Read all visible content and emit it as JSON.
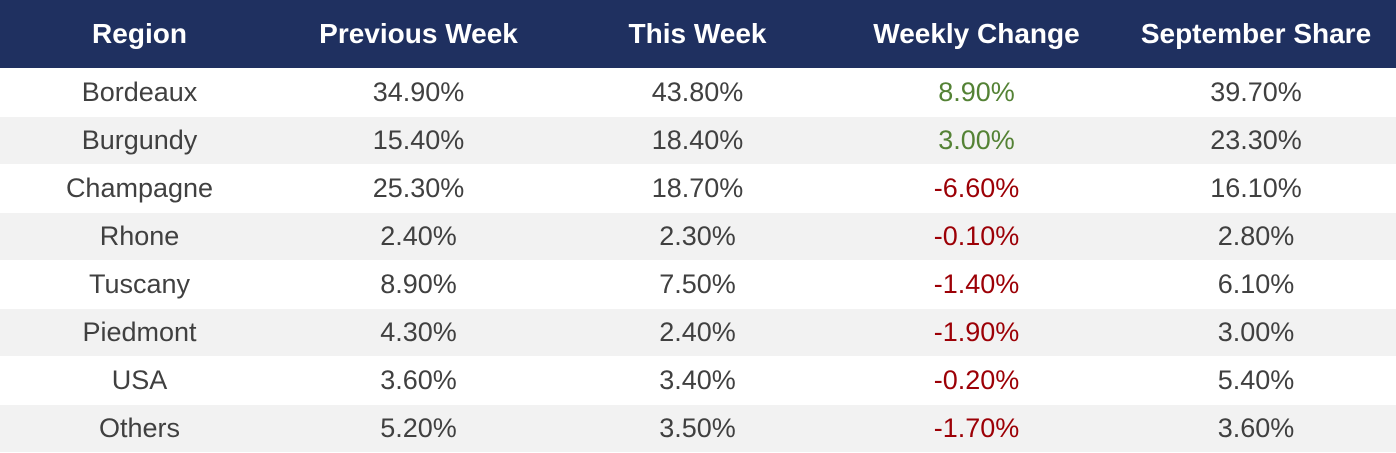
{
  "chart_data": {
    "type": "table",
    "columns": [
      "Region",
      "Previous Week",
      "This Week",
      "Weekly Change",
      "September Share"
    ],
    "rows": [
      [
        "Bordeaux",
        "34.90%",
        "43.80%",
        "8.90%",
        "39.70%"
      ],
      [
        "Burgundy",
        "15.40%",
        "18.40%",
        "3.00%",
        "23.30%"
      ],
      [
        "Champagne",
        "25.30%",
        "18.70%",
        "-6.60%",
        "16.10%"
      ],
      [
        "Rhone",
        "2.40%",
        "2.30%",
        "-0.10%",
        "2.80%"
      ],
      [
        "Tuscany",
        "8.90%",
        "7.50%",
        "-1.40%",
        "6.10%"
      ],
      [
        "Piedmont",
        "4.30%",
        "2.40%",
        "-1.90%",
        "3.00%"
      ],
      [
        "USA",
        "3.60%",
        "3.40%",
        "-0.20%",
        "5.40%"
      ],
      [
        "Others",
        "5.20%",
        "3.50%",
        "-1.70%",
        "3.60%"
      ]
    ],
    "colors": {
      "header_background": "#1f3060",
      "header_text": "#ffffff",
      "positive_change": "#548235",
      "negative_change": "#9c0006",
      "stripe_background": "#f2f2f2"
    }
  }
}
